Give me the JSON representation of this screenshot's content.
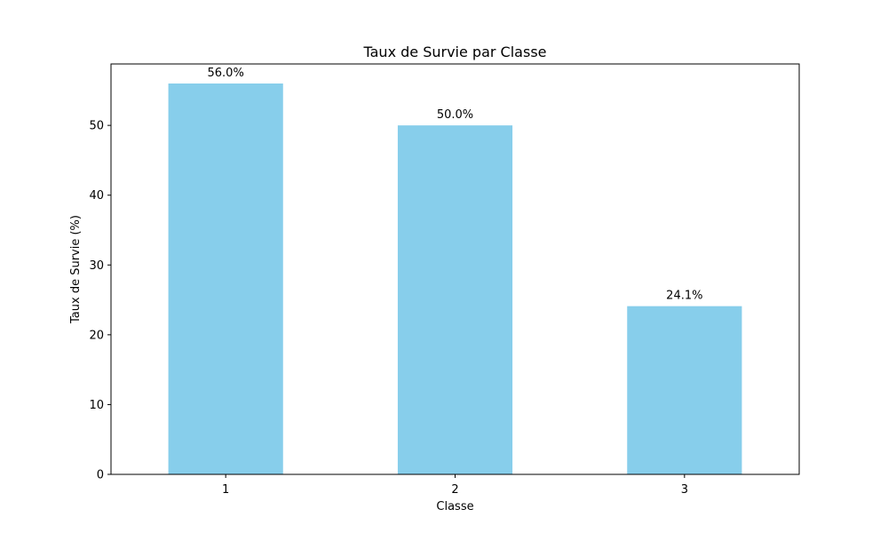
{
  "chart_data": {
    "type": "bar",
    "title": "Taux de Survie par Classe",
    "xlabel": "Classe",
    "ylabel": "Taux de Survie (%)",
    "categories": [
      "1",
      "2",
      "3"
    ],
    "values": [
      56.0,
      50.0,
      24.1
    ],
    "data_labels": [
      "56.0%",
      "50.0%",
      "24.1%"
    ],
    "yticks": [
      0,
      10,
      20,
      30,
      40,
      50
    ],
    "ylim": [
      0,
      58.8
    ],
    "grid": false,
    "bar_color": "#87ceeb"
  }
}
